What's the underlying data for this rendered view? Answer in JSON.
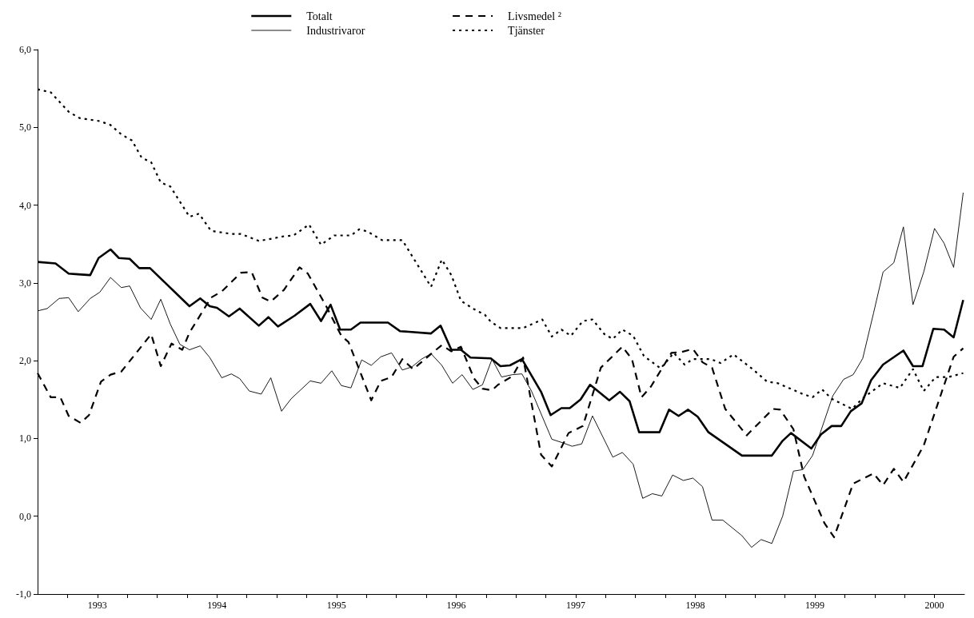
{
  "chart_data": {
    "type": "line",
    "marker": "none",
    "legend": "top",
    "grid": false,
    "xlim": [
      1993,
      2000.75
    ],
    "xticks": [
      {
        "value": 1993.25,
        "label": null
      },
      {
        "value": 1993.5,
        "label": "1993"
      },
      {
        "value": 1993.75,
        "label": null
      },
      {
        "value": 1994,
        "label": null
      },
      {
        "value": 1994.25,
        "label": null
      },
      {
        "value": 1994.5,
        "label": "1994"
      },
      {
        "value": 1994.75,
        "label": null
      },
      {
        "value": 1995,
        "label": null
      },
      {
        "value": 1995.25,
        "label": null
      },
      {
        "value": 1995.5,
        "label": "1995"
      },
      {
        "value": 1995.75,
        "label": null
      },
      {
        "value": 1996,
        "label": null
      },
      {
        "value": 1996.25,
        "label": null
      },
      {
        "value": 1996.5,
        "label": "1996"
      },
      {
        "value": 1996.75,
        "label": null
      },
      {
        "value": 1997,
        "label": null
      },
      {
        "value": 1997.25,
        "label": null
      },
      {
        "value": 1997.5,
        "label": "1997"
      },
      {
        "value": 1997.75,
        "label": null
      },
      {
        "value": 1998,
        "label": null
      },
      {
        "value": 1998.25,
        "label": null
      },
      {
        "value": 1998.5,
        "label": "1998"
      },
      {
        "value": 1998.75,
        "label": null
      },
      {
        "value": 1999,
        "label": null
      },
      {
        "value": 1999.25,
        "label": null
      },
      {
        "value": 1999.5,
        "label": "1999"
      },
      {
        "value": 1999.75,
        "label": null
      },
      {
        "value": 2000,
        "label": null
      },
      {
        "value": 2000.25,
        "label": null
      },
      {
        "value": 2000.5,
        "label": "2000"
      }
    ],
    "ylim": [
      -1,
      6
    ],
    "yticks": [
      {
        "value": -1,
        "label": "-1,0"
      },
      {
        "value": 0,
        "label": "0,0"
      },
      {
        "value": 1,
        "label": "1,0"
      },
      {
        "value": 2,
        "label": "2,0"
      },
      {
        "value": 3,
        "label": "3,0"
      },
      {
        "value": 4,
        "label": "4,0"
      },
      {
        "value": 5,
        "label": "5,0"
      },
      {
        "value": 6,
        "label": "6,0"
      }
    ],
    "series": [
      {
        "name": "Totalt",
        "color": "#000000",
        "line_style": "solid",
        "x": [
          1993.0,
          1993.15,
          1993.26,
          1993.34,
          1993.44,
          1993.51,
          1993.61,
          1993.68,
          1993.77,
          1993.85,
          1993.94,
          1994.27,
          1994.36,
          1994.44,
          1994.5,
          1994.6,
          1994.69,
          1994.85,
          1994.93,
          1995.01,
          1995.15,
          1995.28,
          1995.37,
          1995.45,
          1995.53,
          1995.62,
          1995.7,
          1995.93,
          1996.03,
          1996.29,
          1996.37,
          1996.46,
          1996.54,
          1996.62,
          1996.79,
          1996.87,
          1996.95,
          1997.05,
          1997.21,
          1997.29,
          1997.38,
          1997.45,
          1997.54,
          1997.62,
          1997.78,
          1997.87,
          1997.95,
          1998.03,
          1998.2,
          1998.28,
          1998.36,
          1998.44,
          1998.52,
          1998.61,
          1998.89,
          1999.14,
          1999.23,
          1999.3,
          1999.47,
          1999.55,
          1999.64,
          1999.72,
          1999.8,
          1999.89,
          1999.97,
          2000.07,
          2000.24,
          2000.32,
          2000.4,
          2000.49,
          2000.58,
          2000.66,
          2000.74
        ],
        "values": [
          3.27,
          3.25,
          3.12,
          3.11,
          3.1,
          3.32,
          3.43,
          3.32,
          3.31,
          3.19,
          3.19,
          2.7,
          2.8,
          2.7,
          2.68,
          2.57,
          2.67,
          2.45,
          2.56,
          2.44,
          2.58,
          2.73,
          2.51,
          2.72,
          2.4,
          2.4,
          2.49,
          2.49,
          2.38,
          2.35,
          2.45,
          2.14,
          2.14,
          2.04,
          2.03,
          1.93,
          1.94,
          2.02,
          1.6,
          1.3,
          1.39,
          1.39,
          1.5,
          1.69,
          1.49,
          1.6,
          1.48,
          1.08,
          1.08,
          1.37,
          1.29,
          1.37,
          1.28,
          1.08,
          0.78,
          0.78,
          0.97,
          1.07,
          0.87,
          1.05,
          1.16,
          1.16,
          1.35,
          1.45,
          1.75,
          1.95,
          2.13,
          1.93,
          1.93,
          2.41,
          2.4,
          2.3,
          2.78
        ]
      },
      {
        "name": "Industrivaror",
        "color": "#000000",
        "line_style": "solid",
        "x": [
          1993.0,
          1993.08,
          1993.18,
          1993.26,
          1993.34,
          1993.44,
          1993.52,
          1993.61,
          1993.7,
          1993.77,
          1993.86,
          1993.95,
          1994.03,
          1994.11,
          1994.19,
          1994.27,
          1994.36,
          1994.44,
          1994.54,
          1994.62,
          1994.69,
          1994.77,
          1994.87,
          1994.95,
          1995.04,
          1995.12,
          1995.28,
          1995.37,
          1995.46,
          1995.54,
          1995.62,
          1995.71,
          1995.79,
          1995.87,
          1995.96,
          1996.05,
          1996.13,
          1996.21,
          1996.29,
          1996.38,
          1996.47,
          1996.55,
          1996.64,
          1996.72,
          1996.8,
          1996.88,
          1996.97,
          1997.05,
          1997.13,
          1997.3,
          1997.38,
          1997.47,
          1997.55,
          1997.64,
          1997.81,
          1997.89,
          1997.98,
          1998.06,
          1998.14,
          1998.22,
          1998.31,
          1998.4,
          1998.48,
          1998.56,
          1998.64,
          1998.73,
          1998.89,
          1998.97,
          1999.05,
          1999.14,
          1999.23,
          1999.32,
          1999.4,
          1999.48,
          1999.65,
          1999.74,
          1999.82,
          1999.9,
          1999.99,
          2000.07,
          2000.16,
          2000.24,
          2000.32,
          2000.41,
          2000.5,
          2000.58,
          2000.66,
          2000.74
        ],
        "values": [
          2.64,
          2.67,
          2.8,
          2.81,
          2.63,
          2.8,
          2.88,
          3.07,
          2.94,
          2.96,
          2.68,
          2.53,
          2.79,
          2.47,
          2.21,
          2.14,
          2.19,
          2.04,
          1.78,
          1.83,
          1.77,
          1.61,
          1.57,
          1.78,
          1.35,
          1.51,
          1.74,
          1.71,
          1.87,
          1.68,
          1.65,
          2.01,
          1.94,
          2.05,
          2.1,
          1.88,
          1.92,
          2.02,
          2.09,
          1.94,
          1.71,
          1.82,
          1.63,
          1.69,
          2.02,
          1.79,
          1.82,
          1.83,
          1.61,
          0.99,
          0.95,
          0.9,
          0.93,
          1.29,
          0.76,
          0.82,
          0.67,
          0.23,
          0.29,
          0.26,
          0.53,
          0.46,
          0.49,
          0.38,
          -0.05,
          -0.05,
          -0.25,
          -0.4,
          -0.3,
          -0.35,
          0.0,
          0.58,
          0.6,
          0.78,
          1.55,
          1.76,
          1.82,
          2.03,
          2.61,
          3.14,
          3.26,
          3.72,
          2.72,
          3.14,
          3.7,
          3.51,
          3.2,
          4.16
        ]
      },
      {
        "name": "Livsmedel ²",
        "color": "#000000",
        "line_style": "dashed",
        "x": [
          1993.0,
          1993.11,
          1993.19,
          1993.26,
          1993.36,
          1993.43,
          1993.53,
          1993.61,
          1993.7,
          1993.95,
          1994.03,
          1994.12,
          1994.21,
          1994.27,
          1994.45,
          1994.54,
          1994.7,
          1994.79,
          1994.88,
          1994.95,
          1995.06,
          1995.19,
          1995.26,
          1995.41,
          1995.54,
          1995.6,
          1995.79,
          1995.87,
          1995.96,
          1996.05,
          1996.14,
          1996.3,
          1996.38,
          1996.46,
          1996.54,
          1996.65,
          1996.72,
          1996.8,
          1996.85,
          1996.97,
          1997.06,
          1997.21,
          1997.3,
          1997.44,
          1997.56,
          1997.71,
          1997.89,
          1997.97,
          1998.05,
          1998.13,
          1998.3,
          1998.38,
          1998.48,
          1998.56,
          1998.64,
          1998.75,
          1998.93,
          1999.02,
          1999.15,
          1999.21,
          1999.32,
          1999.41,
          1999.58,
          1999.66,
          1999.82,
          1999.99,
          2000.07,
          2000.16,
          2000.24,
          2000.41,
          2000.66,
          2000.74
        ],
        "values": [
          1.84,
          1.53,
          1.53,
          1.29,
          1.2,
          1.3,
          1.73,
          1.82,
          1.86,
          2.34,
          1.93,
          2.22,
          2.14,
          2.36,
          2.81,
          2.89,
          3.13,
          3.14,
          2.81,
          2.76,
          2.91,
          3.2,
          3.12,
          2.71,
          2.32,
          2.24,
          1.49,
          1.74,
          1.79,
          2.02,
          1.89,
          2.1,
          2.2,
          2.12,
          2.18,
          1.77,
          1.64,
          1.62,
          1.69,
          1.8,
          2.04,
          0.79,
          0.64,
          1.07,
          1.16,
          1.91,
          2.18,
          2.02,
          1.53,
          1.67,
          2.1,
          2.11,
          2.15,
          1.98,
          1.91,
          1.38,
          1.04,
          1.18,
          1.38,
          1.37,
          1.12,
          0.51,
          -0.09,
          -0.27,
          0.42,
          0.55,
          0.4,
          0.61,
          0.44,
          0.91,
          2.05,
          2.16
        ]
      },
      {
        "name": "Tjänster",
        "color": "#000000",
        "line_style": "dotted",
        "x": [
          1993.0,
          1993.11,
          1993.26,
          1993.35,
          1993.52,
          1993.61,
          1993.7,
          1993.79,
          1993.87,
          1993.95,
          1994.03,
          1994.11,
          1994.27,
          1994.35,
          1994.45,
          1994.62,
          1994.7,
          1994.85,
          1994.93,
          1995.06,
          1995.14,
          1995.27,
          1995.37,
          1995.48,
          1995.62,
          1995.69,
          1995.76,
          1995.88,
          1996.05,
          1996.29,
          1996.38,
          1996.46,
          1996.54,
          1996.64,
          1996.74,
          1996.79,
          1996.87,
          1997.06,
          1997.22,
          1997.3,
          1997.38,
          1997.46,
          1997.56,
          1997.64,
          1997.74,
          1997.81,
          1997.89,
          1997.98,
          1998.07,
          1998.21,
          1998.32,
          1998.41,
          1998.48,
          1998.63,
          1998.71,
          1998.82,
          1998.98,
          1999.1,
          1999.19,
          1999.4,
          1999.48,
          1999.56,
          1999.64,
          1999.81,
          1999.91,
          2000.07,
          2000.21,
          2000.32,
          2000.41,
          2000.51,
          2000.62,
          2000.74
        ],
        "values": [
          5.49,
          5.45,
          5.2,
          5.12,
          5.08,
          5.03,
          4.91,
          4.83,
          4.61,
          4.55,
          4.29,
          4.24,
          3.85,
          3.89,
          3.67,
          3.63,
          3.63,
          3.54,
          3.56,
          3.6,
          3.61,
          3.75,
          3.49,
          3.61,
          3.61,
          3.69,
          3.66,
          3.55,
          3.55,
          2.95,
          3.3,
          3.1,
          2.77,
          2.67,
          2.59,
          2.5,
          2.42,
          2.42,
          2.53,
          2.31,
          2.4,
          2.32,
          2.51,
          2.53,
          2.34,
          2.28,
          2.4,
          2.32,
          2.06,
          1.9,
          2.1,
          1.95,
          2.02,
          2.02,
          1.97,
          2.08,
          1.89,
          1.73,
          1.71,
          1.57,
          1.53,
          1.63,
          1.51,
          1.38,
          1.53,
          1.71,
          1.65,
          1.89,
          1.61,
          1.79,
          1.79,
          1.84
        ]
      }
    ]
  }
}
